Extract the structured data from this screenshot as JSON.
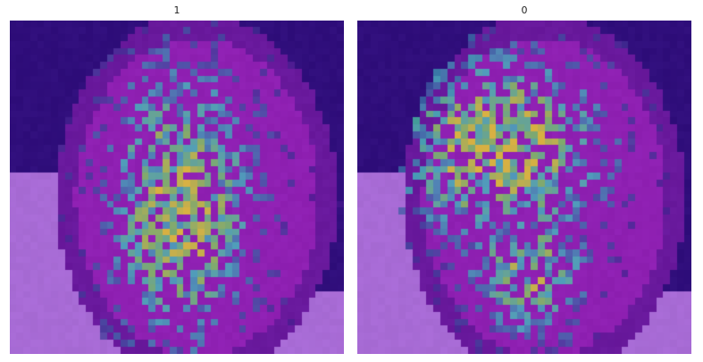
{
  "panels": [
    {
      "title": "1",
      "seed": 7,
      "focus": "center-vertical"
    },
    {
      "title": "0",
      "seed": 19,
      "focus": "upper-center"
    }
  ],
  "colors": {
    "background_dark": "#3a0f8f",
    "background_face": "#8a1fb8",
    "skin_light": "#a56ad0",
    "highlight_cyan": "#3fc9c3",
    "highlight_green": "#7ed957",
    "highlight_yellow": "#f2e21b"
  }
}
